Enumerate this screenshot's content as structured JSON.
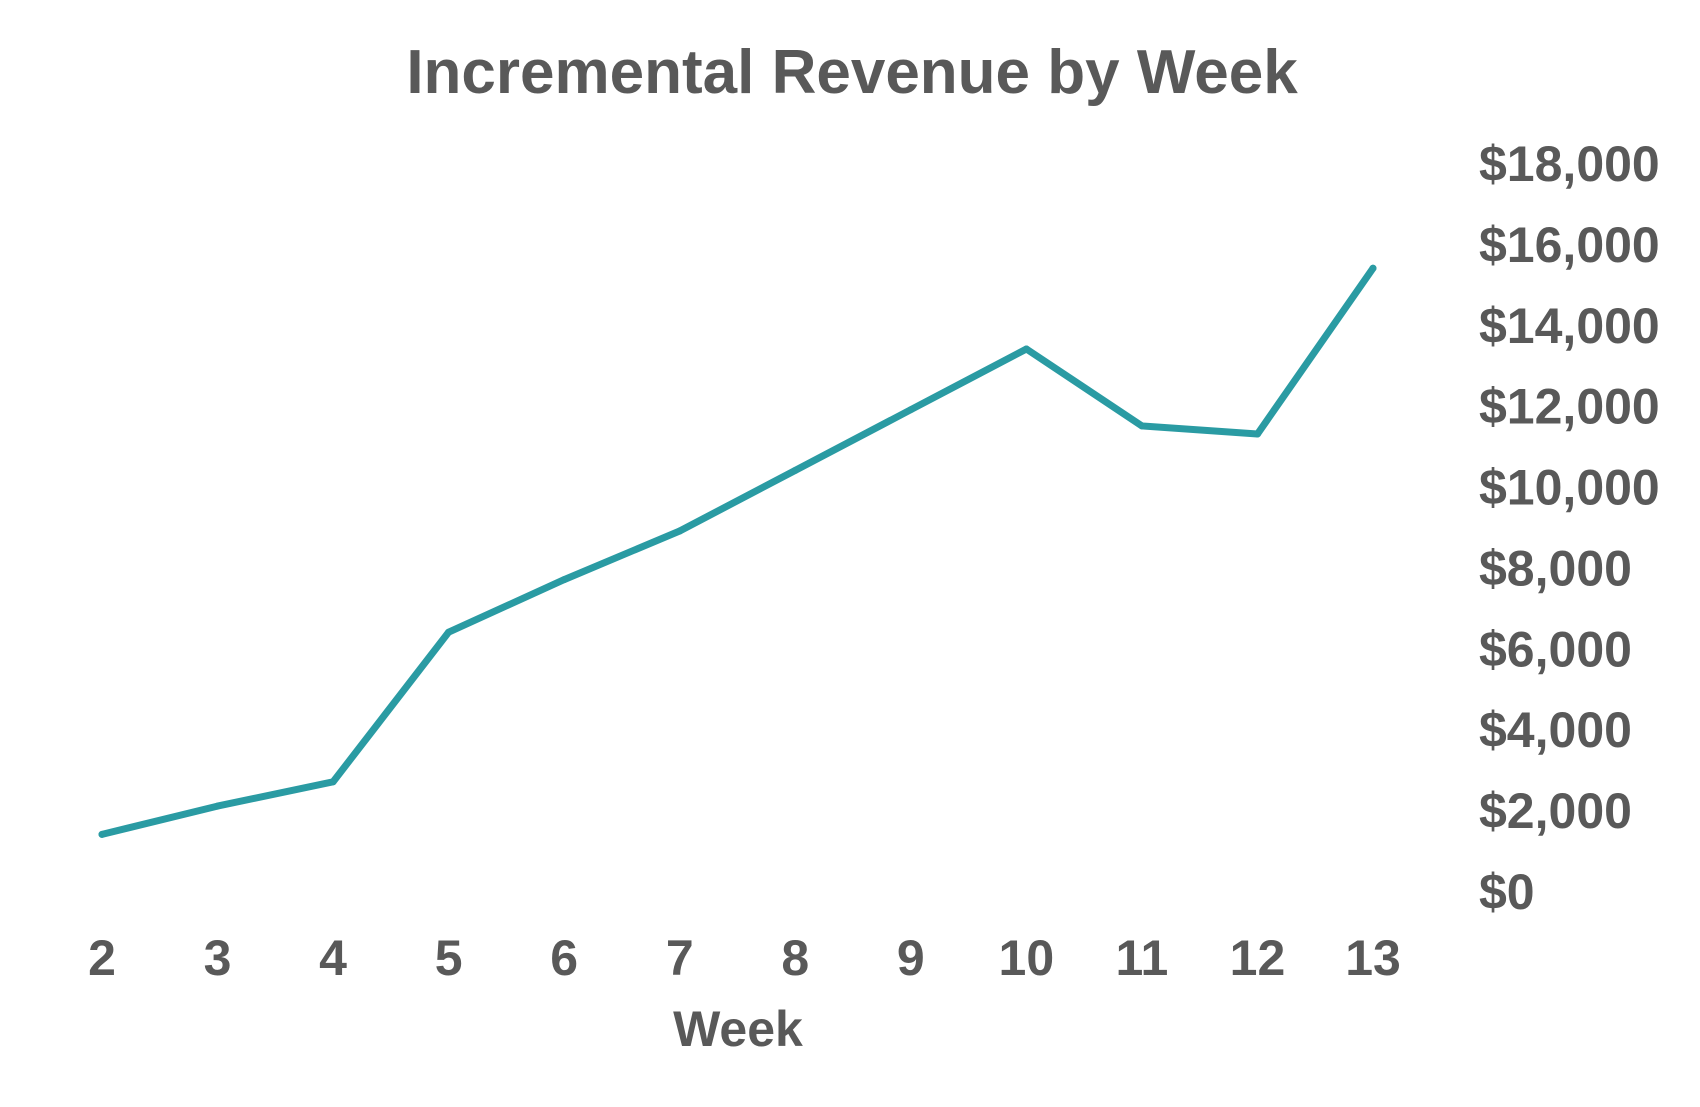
{
  "chart_data": {
    "type": "line",
    "title": "Incremental Revenue by Week",
    "xlabel": "Week",
    "ylabel": "",
    "x": [
      2,
      3,
      4,
      5,
      6,
      7,
      8,
      9,
      10,
      11,
      12,
      13
    ],
    "series": [
      {
        "values": [
          1400,
          2100,
          2700,
          6400,
          7700,
          8900,
          10400,
          11900,
          13400,
          11500,
          11300,
          15400
        ],
        "color": "#2A9BA3"
      }
    ],
    "ylim": [
      0,
      18000
    ],
    "yticks": [
      0,
      2000,
      4000,
      6000,
      8000,
      10000,
      12000,
      14000,
      16000,
      18000
    ],
    "ytick_labels": [
      "$0",
      "$2,000",
      "$4,000",
      "$6,000",
      "$8,000",
      "$10,000",
      "$12,000",
      "$14,000",
      "$16,000",
      "$18,000"
    ],
    "xtick_labels": [
      "2",
      "3",
      "4",
      "5",
      "6",
      "7",
      "8",
      "9",
      "10",
      "11",
      "12",
      "13"
    ],
    "y_axis_position": "right",
    "grid": false,
    "legend": "none"
  },
  "colors": {
    "text": "#595959",
    "line": "#2A9BA3",
    "background": "#FFFFFF"
  }
}
